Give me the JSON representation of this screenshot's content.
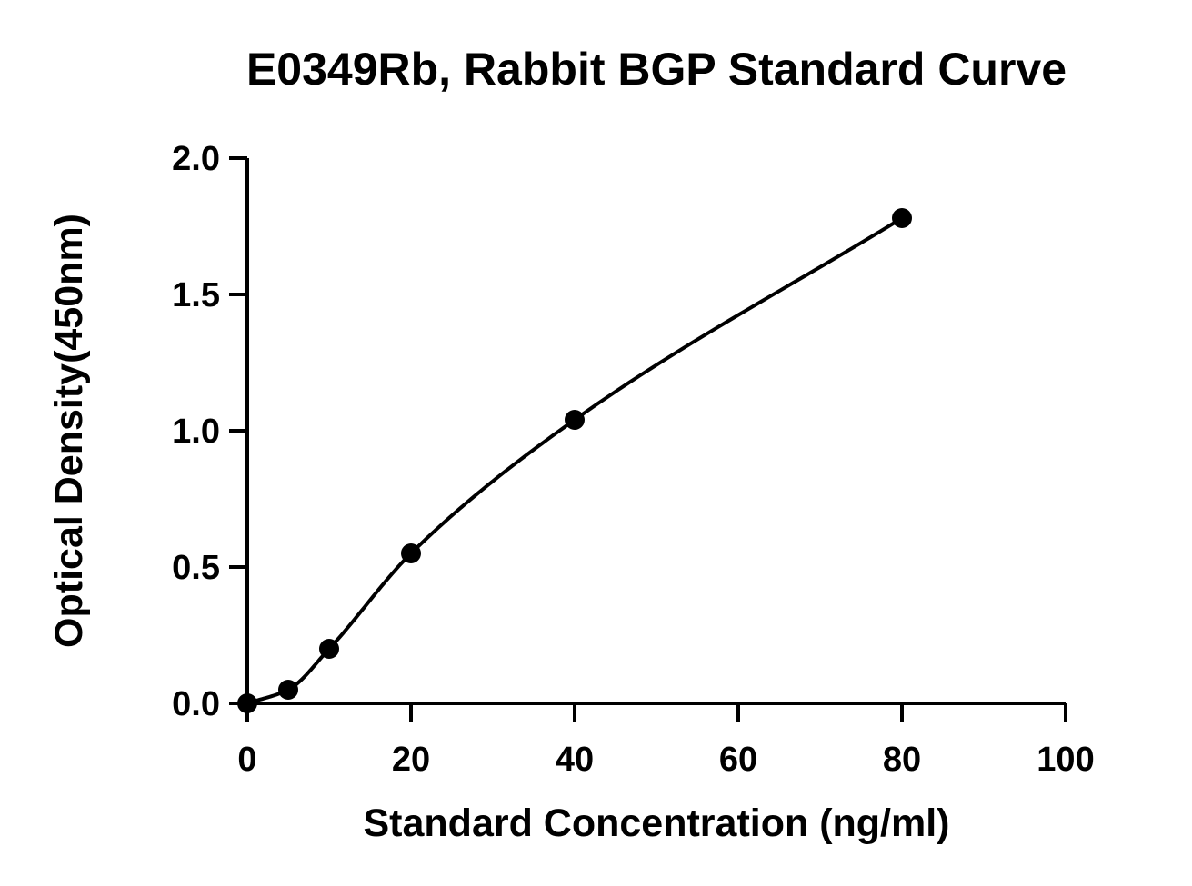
{
  "chart_data": {
    "type": "scatter",
    "title": "E0349Rb, Rabbit BGP Standard Curve",
    "xlabel": "Standard Concentration (ng/ml)",
    "ylabel": "Optical Density(450nm)",
    "xlim": [
      0,
      100
    ],
    "ylim": [
      0,
      2.0
    ],
    "x_ticks": [
      0,
      20,
      40,
      60,
      80,
      100
    ],
    "y_ticks": [
      0.0,
      0.5,
      1.0,
      1.5,
      2.0
    ],
    "x_tick_labels": [
      "0",
      "20",
      "40",
      "60",
      "80",
      "100"
    ],
    "y_tick_labels": [
      "0.0",
      "0.5",
      "1.0",
      "1.5",
      "2.0"
    ],
    "grid": false,
    "legend": "none",
    "series": [
      {
        "x": [
          0,
          5,
          10,
          20,
          40,
          80
        ],
        "y": [
          0.0,
          0.05,
          0.2,
          0.55,
          1.04,
          1.78
        ],
        "marker": "circle",
        "fit_line": true
      }
    ],
    "colors": {
      "points": "#000000",
      "curve": "#000000",
      "axes": "#000000"
    }
  }
}
